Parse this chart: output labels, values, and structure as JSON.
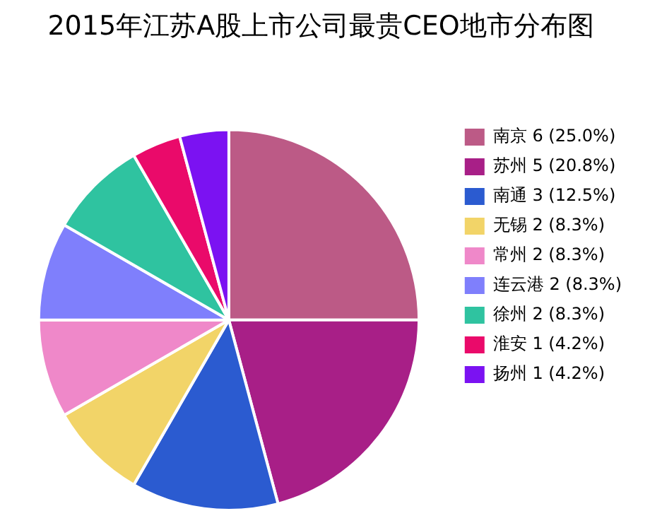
{
  "chart_data": {
    "type": "pie",
    "title": "2015年江苏A股上市公司最贵CEO地市分布图",
    "categories": [
      "南京",
      "苏州",
      "南通",
      "无锡",
      "常州",
      "连云港",
      "徐州",
      "淮安",
      "扬州"
    ],
    "values": [
      6,
      5,
      3,
      2,
      2,
      2,
      2,
      1,
      1
    ],
    "value_labels": [
      "6 (25.0%)",
      "5 (20.8%)",
      "3 (12.5%)",
      "2 (8.3%)",
      "2 (8.3%)",
      "2 (8.3%)",
      "2 (8.3%)",
      "1 (4.2%)",
      "1 (4.2%)"
    ],
    "colors": [
      "#bc5a86",
      "#a81f87",
      "#2b5bd0",
      "#f2d468",
      "#ef88c9",
      "#7f7ffc",
      "#2fc3a0",
      "#ea0a6a",
      "#7b12f2"
    ],
    "legend": "right"
  }
}
